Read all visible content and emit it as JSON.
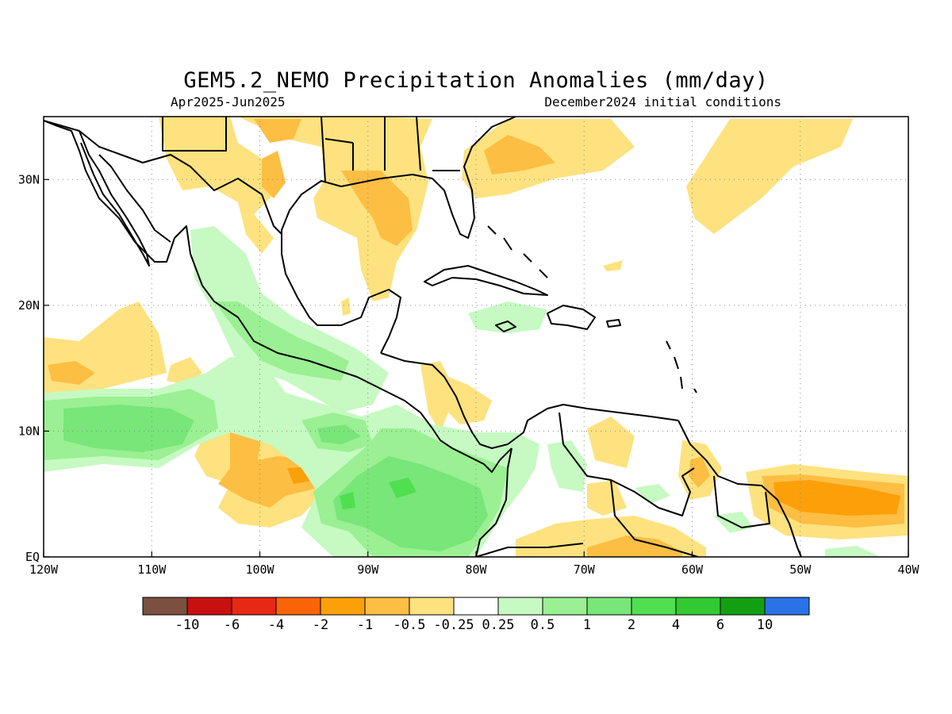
{
  "title": "GEM5.2_NEMO Precipitation Anomalies (mm/day)",
  "period": "Apr2025-Jun2025",
  "initial_conditions": "December2024 initial conditions",
  "axes": {
    "lon_range": [
      -120,
      -40
    ],
    "lat_range": [
      0,
      35
    ],
    "x_ticks": [
      {
        "lon": -120,
        "label": "120W"
      },
      {
        "lon": -110,
        "label": "110W"
      },
      {
        "lon": -100,
        "label": "100W"
      },
      {
        "lon": -90,
        "label": "90W"
      },
      {
        "lon": -80,
        "label": "80W"
      },
      {
        "lon": -70,
        "label": "70W"
      },
      {
        "lon": -60,
        "label": "60W"
      },
      {
        "lon": -50,
        "label": "50W"
      },
      {
        "lon": -40,
        "label": "40W"
      }
    ],
    "y_ticks": [
      {
        "lat": 0,
        "label": "EQ"
      },
      {
        "lat": 10,
        "label": "10N"
      },
      {
        "lat": 20,
        "label": "20N"
      },
      {
        "lat": 30,
        "label": "30N"
      }
    ],
    "grid": "dotted"
  },
  "colorbar": {
    "colors": [
      "#7b5040",
      "#c81010",
      "#e62814",
      "#fa6408",
      "#fca00a",
      "#fdbe44",
      "#fde27f",
      "#ffffff",
      "#c6fac2",
      "#9af092",
      "#78e678",
      "#4fdf4f",
      "#32c932",
      "#12a012",
      "#2a72e6"
    ],
    "labels": [
      "-10",
      "-6",
      "-4",
      "-2",
      "-1",
      "-0.5",
      "-0.25",
      "0.25",
      "0.5",
      "1",
      "2",
      "4",
      "6",
      "10"
    ]
  },
  "colors": {
    "dry_light": "#fde27f",
    "dry_mid": "#fdbe44",
    "dry_strong": "#fca00a",
    "wet_light": "#c6fac2",
    "wet_mid": "#9af092",
    "wet_strong": "#78e678",
    "wet_peak": "#4fdf4f"
  }
}
